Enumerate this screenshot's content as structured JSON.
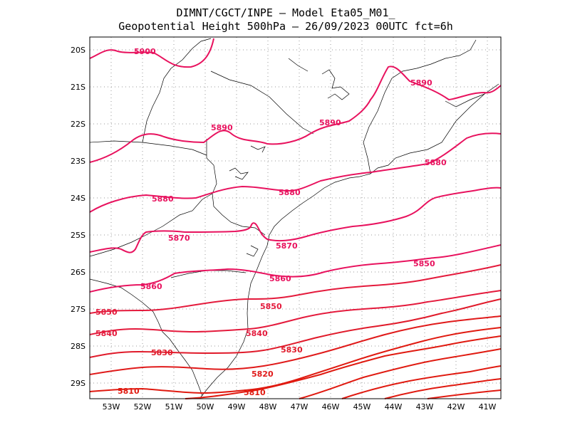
{
  "header": {
    "line1": "DIMNT/CGCT/INPE –  Model Eta05_M01_",
    "line2": "Geopotential Height 500hPa –  26/09/2023 00UTC fct=6h"
  },
  "axes": {
    "lat_labels": [
      "20S",
      "21S",
      "22S",
      "23S",
      "24S",
      "25S",
      "26S",
      "27S",
      "28S",
      "29S"
    ],
    "lon_labels": [
      "53W",
      "52W",
      "51W",
      "50W",
      "49W",
      "48W",
      "47W",
      "46W",
      "45W",
      "44W",
      "43W",
      "42W",
      "41W"
    ],
    "lat_range": [
      -29.4,
      -19.8
    ],
    "lon_range": [
      -53.6,
      -40.5
    ]
  },
  "contours": {
    "labels": [
      {
        "text": "5900"
      },
      {
        "text": "5890"
      },
      {
        "text": "5890"
      },
      {
        "text": "5890"
      },
      {
        "text": "5880"
      },
      {
        "text": "5880"
      },
      {
        "text": "5880"
      },
      {
        "text": "5870"
      },
      {
        "text": "5870"
      },
      {
        "text": "5860"
      },
      {
        "text": "5860"
      },
      {
        "text": "5850"
      },
      {
        "text": "5850"
      },
      {
        "text": "5850"
      },
      {
        "text": "5840"
      },
      {
        "text": "5840"
      },
      {
        "text": "5830"
      },
      {
        "text": "5830"
      },
      {
        "text": "5820"
      },
      {
        "text": "5810"
      },
      {
        "text": "5810"
      }
    ]
  },
  "colors": {
    "contour_high": "#e8125e",
    "contour_mid": "#e41a3c",
    "contour_low": "#e01a10",
    "coast": "#000000",
    "grid": "#9a9a9a"
  }
}
